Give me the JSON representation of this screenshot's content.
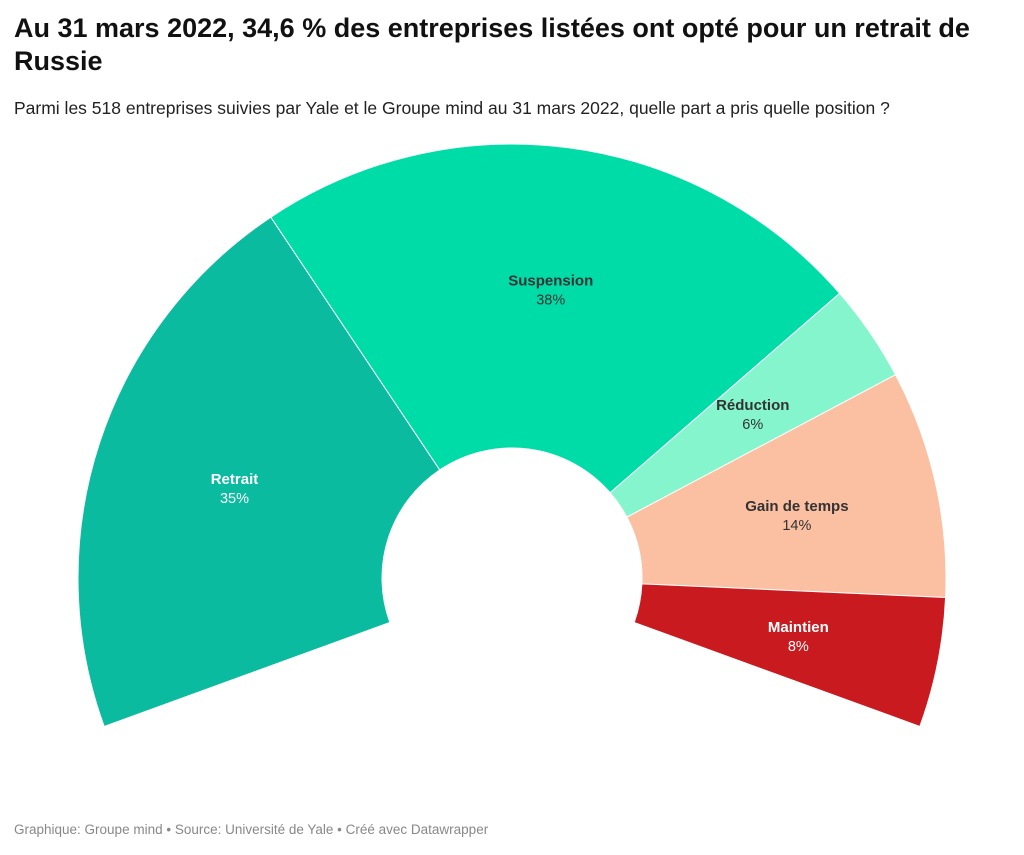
{
  "title": "Au 31 mars 2022, 34,6 % des entreprises listées ont opté pour un retrait de Russie",
  "subtitle": "Parmi les 518 entreprises suivies par Yale et le Groupe mind au 31 mars 2022, quelle part a pris quelle position ?",
  "footer": "Graphique: Groupe mind • Source: Université de Yale • Créé avec Datawrapper",
  "chart_data": {
    "type": "pie",
    "variant": "donut-arc",
    "title": "Au 31 mars 2022, 34,6 % des entreprises listées ont opté pour un retrait de Russie",
    "subtitle": "Parmi les 518 entreprises suivies par Yale et le Groupe mind au 31 mars 2022, quelle part a pris quelle position ?",
    "slices": [
      {
        "label": "Retrait",
        "value": 35,
        "display": "35%",
        "color": "#0bbb9f",
        "text_color": "#ffffff"
      },
      {
        "label": "Suspension",
        "value": 38,
        "display": "38%",
        "color": "#00dca8",
        "text_color": "#333333"
      },
      {
        "label": "Réduction",
        "value": 6,
        "display": "6%",
        "color": "#84f5cc",
        "text_color": "#333333"
      },
      {
        "label": "Gain de temps",
        "value": 14,
        "display": "14%",
        "color": "#fbbfa1",
        "text_color": "#333333"
      },
      {
        "label": "Maintien",
        "value": 8,
        "display": "8%",
        "color": "#c91b1f",
        "text_color": "#ffffff"
      }
    ]
  }
}
